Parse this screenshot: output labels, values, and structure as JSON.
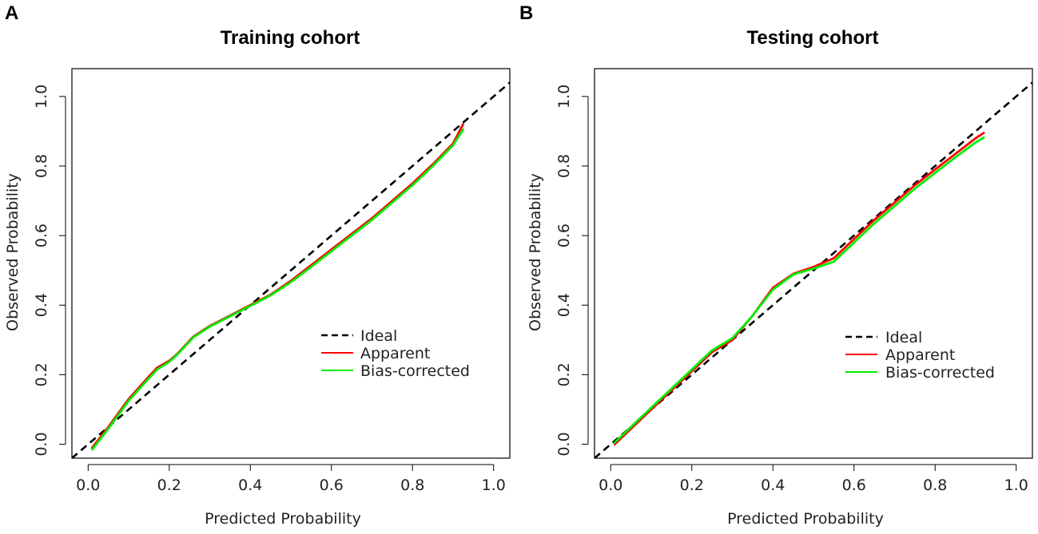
{
  "chart_data": [
    {
      "panel_label": "A",
      "type": "line",
      "title": "Training cohort",
      "xlabel": "Predicted Probability",
      "ylabel": "Observed Probability",
      "xlim": [
        -0.04,
        1.04
      ],
      "ylim": [
        -0.04,
        1.08
      ],
      "xticks": [
        "0.0",
        "0.2",
        "0.4",
        "0.6",
        "0.8",
        "1.0"
      ],
      "yticks": [
        "0.0",
        "0.2",
        "0.4",
        "0.6",
        "0.8",
        "1.0"
      ],
      "legend_position": "bottom-right",
      "series": [
        {
          "name": "Ideal",
          "color": "#000000",
          "dash": true,
          "x": [
            -0.04,
            1.04
          ],
          "y": [
            -0.04,
            1.04
          ]
        },
        {
          "name": "Apparent",
          "color": "#ff0000",
          "dash": false,
          "x": [
            0.01,
            0.05,
            0.1,
            0.15,
            0.17,
            0.2,
            0.22,
            0.26,
            0.3,
            0.35,
            0.4,
            0.45,
            0.5,
            0.55,
            0.6,
            0.65,
            0.7,
            0.75,
            0.8,
            0.85,
            0.9,
            0.925
          ],
          "y": [
            -0.01,
            0.05,
            0.13,
            0.195,
            0.22,
            0.24,
            0.26,
            0.31,
            0.34,
            0.37,
            0.4,
            0.43,
            0.47,
            0.515,
            0.56,
            0.605,
            0.65,
            0.7,
            0.75,
            0.805,
            0.865,
            0.92
          ]
        },
        {
          "name": "Bias-corrected",
          "color": "#00ee00",
          "dash": false,
          "x": [
            0.01,
            0.05,
            0.1,
            0.15,
            0.17,
            0.2,
            0.22,
            0.26,
            0.3,
            0.35,
            0.4,
            0.45,
            0.5,
            0.55,
            0.6,
            0.65,
            0.7,
            0.75,
            0.8,
            0.85,
            0.9,
            0.925
          ],
          "y": [
            -0.015,
            0.045,
            0.125,
            0.19,
            0.215,
            0.237,
            0.258,
            0.308,
            0.338,
            0.368,
            0.398,
            0.428,
            0.466,
            0.51,
            0.555,
            0.6,
            0.645,
            0.695,
            0.745,
            0.8,
            0.86,
            0.905
          ]
        }
      ]
    },
    {
      "panel_label": "B",
      "type": "line",
      "title": "Testing cohort",
      "xlabel": "Predicted Probability",
      "ylabel": "Observed Probability",
      "xlim": [
        -0.04,
        1.04
      ],
      "ylim": [
        -0.04,
        1.08
      ],
      "xticks": [
        "0.0",
        "0.2",
        "0.4",
        "0.6",
        "0.8",
        "1.0"
      ],
      "yticks": [
        "0.0",
        "0.2",
        "0.4",
        "0.6",
        "0.8",
        "1.0"
      ],
      "legend_position": "bottom-right",
      "series": [
        {
          "name": "Ideal",
          "color": "#000000",
          "dash": true,
          "x": [
            -0.04,
            1.04
          ],
          "y": [
            -0.04,
            1.04
          ]
        },
        {
          "name": "Apparent",
          "color": "#ff0000",
          "dash": false,
          "x": [
            0.01,
            0.05,
            0.1,
            0.15,
            0.2,
            0.25,
            0.3,
            0.35,
            0.4,
            0.45,
            0.5,
            0.55,
            0.6,
            0.65,
            0.7,
            0.75,
            0.8,
            0.85,
            0.9,
            0.92
          ],
          "y": [
            0.0,
            0.045,
            0.1,
            0.155,
            0.21,
            0.265,
            0.3,
            0.37,
            0.45,
            0.49,
            0.51,
            0.535,
            0.59,
            0.645,
            0.695,
            0.745,
            0.79,
            0.835,
            0.88,
            0.895
          ]
        },
        {
          "name": "Bias-corrected",
          "color": "#00ee00",
          "dash": false,
          "x": [
            0.01,
            0.05,
            0.1,
            0.15,
            0.2,
            0.25,
            0.3,
            0.35,
            0.4,
            0.45,
            0.5,
            0.55,
            0.6,
            0.65,
            0.7,
            0.75,
            0.8,
            0.85,
            0.9,
            0.92
          ],
          "y": [
            0.005,
            0.05,
            0.105,
            0.16,
            0.215,
            0.27,
            0.305,
            0.37,
            0.445,
            0.488,
            0.505,
            0.525,
            0.58,
            0.635,
            0.685,
            0.735,
            0.78,
            0.825,
            0.868,
            0.882
          ]
        }
      ]
    }
  ]
}
